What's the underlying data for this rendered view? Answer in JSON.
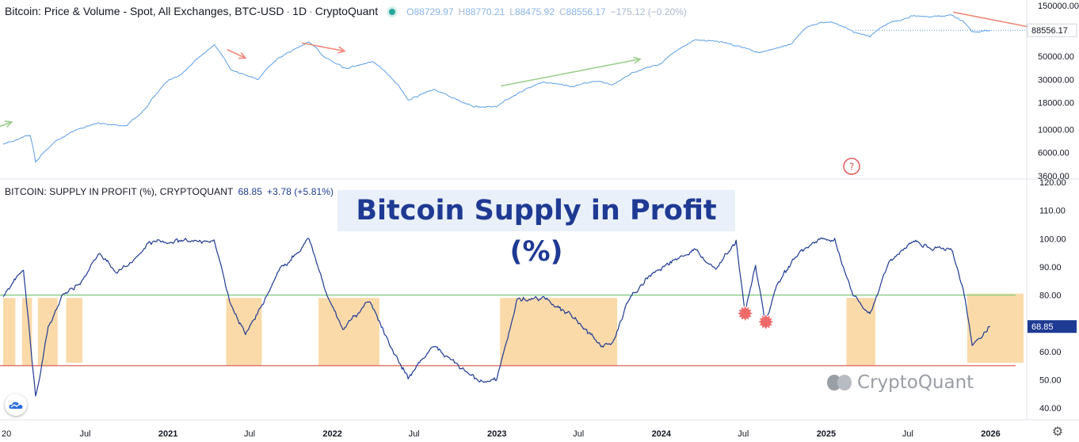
{
  "legend_top": {
    "title": "Bitcoin: Price & Volume - Spot, All Exchanges, BTC-USD",
    "interval": "1D",
    "source": "CryptoQuant",
    "ohlc": {
      "o_label": "O",
      "o": "88729.97",
      "h_label": "H",
      "h": "88770.21",
      "l_label": "L",
      "l": "88475.92",
      "c_label": "C",
      "c": "88556.17",
      "change": "−175.12 (−0.20%)"
    }
  },
  "legend_bottom": {
    "title": "BITCOIN: SUPPLY IN PROFIT (%), CRYPTOQUANT",
    "value": "68.85",
    "change": "+3.78 (+5.81%)"
  },
  "overlay_title": "Bitcoin Supply in Profit (%)",
  "watermark_text": "CryptoQuant",
  "colors": {
    "price_line": "#5b9ee6",
    "supply_line": "#1f3a93",
    "band_fill": "#f9d39a",
    "upper_line": "#8fcd8a",
    "lower_line": "#e07a6f",
    "arrow_red": "#ef8a7c",
    "arrow_green": "#9ccf8e",
    "marker": "#ef6a6a"
  },
  "chart_data": [
    {
      "type": "line",
      "title": "Bitcoin: Price & Volume - Spot, All Exchanges, BTC-USD",
      "y_scale": "log",
      "ylim": [
        3600,
        150000
      ],
      "y_ticks": [
        "150000.00",
        "50000.00",
        "30000.00",
        "18000.00",
        "10000.00",
        "6000.00",
        "3600.00"
      ],
      "last_value_label": "88556.17",
      "x_ticks": [
        "20",
        "Jul",
        "2021",
        "Jul",
        "2022",
        "Jul",
        "2023",
        "Jul",
        "2024",
        "Jul",
        "2025",
        "Jul",
        "2026"
      ],
      "series": [
        {
          "name": "BTC-USD",
          "x": [
            "2020-01-01",
            "2020-03-01",
            "2020-03-13",
            "2020-04-15",
            "2020-06-01",
            "2020-08-01",
            "2020-10-01",
            "2020-11-15",
            "2020-12-31",
            "2021-02-01",
            "2021-04-14",
            "2021-05-20",
            "2021-07-20",
            "2021-09-01",
            "2021-11-10",
            "2021-12-15",
            "2022-02-01",
            "2022-04-01",
            "2022-05-15",
            "2022-06-18",
            "2022-08-15",
            "2022-10-01",
            "2022-11-10",
            "2022-12-31",
            "2023-03-01",
            "2023-04-15",
            "2023-06-15",
            "2023-08-15",
            "2023-09-15",
            "2023-11-01",
            "2023-12-31",
            "2024-03-14",
            "2024-05-20",
            "2024-08-05",
            "2024-09-01",
            "2024-10-15",
            "2024-11-20",
            "2024-12-17",
            "2025-01-20",
            "2025-03-01",
            "2025-04-08",
            "2025-05-20",
            "2025-07-14",
            "2025-08-15",
            "2025-10-06",
            "2025-11-01",
            "2025-11-21",
            "2025-12-31"
          ],
          "values": [
            7200,
            8800,
            4800,
            7000,
            9500,
            11500,
            10700,
            16000,
            29000,
            34000,
            63000,
            37000,
            30000,
            47000,
            68000,
            49000,
            38000,
            45000,
            30000,
            19000,
            24000,
            19500,
            16500,
            16500,
            23500,
            28500,
            26000,
            29000,
            26500,
            35000,
            42500,
            72000,
            68000,
            54000,
            58000,
            65000,
            95000,
            106000,
            104000,
            86000,
            78000,
            105000,
            121000,
            118000,
            124000,
            108000,
            86000,
            88556
          ]
        }
      ],
      "annotations": [
        {
          "type": "arrow",
          "color": "green",
          "from": [
            "2019-12-20",
            10500
          ],
          "to": [
            "2020-01-20",
            11800
          ]
        },
        {
          "type": "arrow",
          "color": "red",
          "from": [
            "2021-05-12",
            58000
          ],
          "to": [
            "2021-06-22",
            48000
          ]
        },
        {
          "type": "arrow",
          "color": "red",
          "from": [
            "2021-10-25",
            67000
          ],
          "to": [
            "2022-01-28",
            56000
          ]
        },
        {
          "type": "arrow",
          "color": "green",
          "from": [
            "2023-01-10",
            26000
          ],
          "to": [
            "2023-11-15",
            47000
          ]
        },
        {
          "type": "arrow",
          "color": "red",
          "from": [
            "2025-10-10",
            132000
          ],
          "to": [
            "2026-04-15",
            92000
          ]
        }
      ]
    },
    {
      "type": "line",
      "title": "BITCOIN: SUPPLY IN PROFIT (%), CRYPTOQUANT",
      "ylim": [
        40,
        120
      ],
      "y_ticks": [
        "120.00",
        "110.00",
        "100.00",
        "90.00",
        "80.00",
        "70.00",
        "60.00",
        "50.00",
        "40.00"
      ],
      "last_value_label": "68.85",
      "x_ticks": [
        "20",
        "Jul",
        "2021",
        "Jul",
        "2022",
        "Jul",
        "2023",
        "Jul",
        "2024",
        "Jul",
        "2025",
        "Jul",
        "2026"
      ],
      "reference_lines": [
        {
          "y": 80,
          "color": "green"
        },
        {
          "y": 55,
          "color": "red"
        }
      ],
      "bands": [
        {
          "x_start": "2020-01-01",
          "x_end": "2020-01-28",
          "y_low": 55,
          "y_high": 79
        },
        {
          "x_start": "2020-02-12",
          "x_end": "2020-03-05",
          "y_low": 55,
          "y_high": 79
        },
        {
          "x_start": "2020-03-18",
          "x_end": "2020-05-01",
          "y_low": 55,
          "y_high": 79
        },
        {
          "x_start": "2020-05-20",
          "x_end": "2020-06-25",
          "y_low": 56,
          "y_high": 79
        },
        {
          "x_start": "2021-05-10",
          "x_end": "2021-07-28",
          "y_low": 55,
          "y_high": 79
        },
        {
          "x_start": "2021-12-01",
          "x_end": "2022-04-15",
          "y_low": 55,
          "y_high": 79
        },
        {
          "x_start": "2023-01-08",
          "x_end": "2023-09-25",
          "y_low": 55,
          "y_high": 79
        },
        {
          "x_start": "2025-02-15",
          "x_end": "2025-04-20",
          "y_low": 55,
          "y_high": 79
        },
        {
          "x_start": "2025-11-10",
          "x_end": "2026-03-15",
          "y_low": 56,
          "y_high": 80.5
        }
      ],
      "markers": [
        {
          "x": "2024-07-05",
          "y": 73.5
        },
        {
          "x": "2024-08-20",
          "y": 70.5
        }
      ],
      "series": [
        {
          "name": "Supply in Profit (%)",
          "x": [
            "2020-01-01",
            "2020-02-15",
            "2020-03-13",
            "2020-04-10",
            "2020-05-10",
            "2020-06-20",
            "2020-08-01",
            "2020-09-10",
            "2020-10-20",
            "2020-11-20",
            "2021-01-01",
            "2021-02-15",
            "2021-04-13",
            "2021-05-20",
            "2021-06-22",
            "2021-07-25",
            "2021-09-01",
            "2021-10-20",
            "2021-11-10",
            "2021-12-20",
            "2022-01-24",
            "2022-03-25",
            "2022-05-15",
            "2022-06-18",
            "2022-08-15",
            "2022-10-01",
            "2022-11-10",
            "2022-12-01",
            "2022-12-31",
            "2023-02-15",
            "2023-04-15",
            "2023-06-15",
            "2023-08-20",
            "2023-09-15",
            "2023-10-25",
            "2023-12-15",
            "2024-03-14",
            "2024-05-01",
            "2024-06-15",
            "2024-07-05",
            "2024-07-28",
            "2024-08-20",
            "2024-09-15",
            "2024-11-01",
            "2024-12-15",
            "2025-01-20",
            "2025-03-01",
            "2025-04-08",
            "2025-05-20",
            "2025-07-14",
            "2025-08-20",
            "2025-10-06",
            "2025-11-01",
            "2025-11-21",
            "2025-12-15",
            "2025-12-31"
          ],
          "values": [
            80,
            89,
            44,
            68,
            80,
            84,
            95,
            88,
            93,
            99,
            99,
            99,
            99,
            77,
            66,
            75,
            88,
            96,
            100,
            80,
            68,
            78,
            60,
            51,
            62,
            56,
            51,
            49,
            50,
            78,
            79,
            73,
            62,
            63,
            80,
            88,
            96,
            89,
            99,
            74,
            90,
            70,
            84,
            95,
            100,
            99,
            80,
            73,
            92,
            99,
            97,
            96,
            82,
            63,
            66,
            68.85
          ]
        }
      ]
    }
  ]
}
